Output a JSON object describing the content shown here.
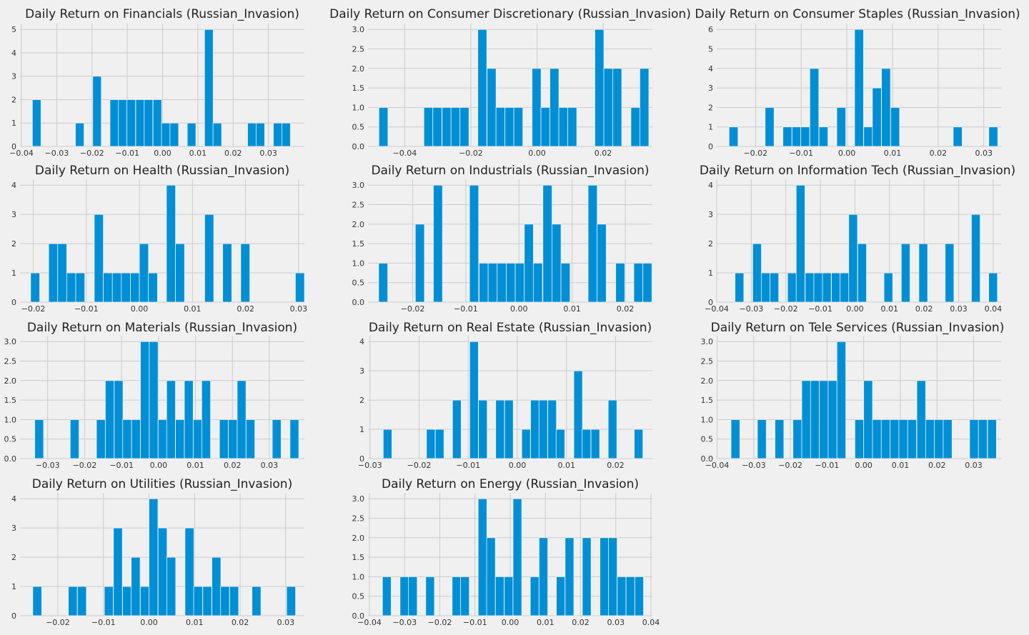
{
  "figure": {
    "background": "#f0f0f0",
    "bar_color": "#008fd5",
    "grid": true
  },
  "chart_data": [
    {
      "type": "bar",
      "title": "Daily Return on Financials (Russian_Invasion)",
      "xlabel": "",
      "ylabel": "",
      "bin_width": 0.00244,
      "bins": [
        [
          -0.0369,
          2
        ],
        [
          -0.0247,
          1
        ],
        [
          -0.0198,
          3
        ],
        [
          -0.0149,
          2
        ],
        [
          -0.0125,
          2
        ],
        [
          -0.0101,
          2
        ],
        [
          -0.0076,
          2
        ],
        [
          -0.0052,
          2
        ],
        [
          -0.0027,
          2
        ],
        [
          -0.0003,
          1
        ],
        [
          0.0021,
          1
        ],
        [
          0.007,
          1
        ],
        [
          0.0119,
          5
        ],
        [
          0.0143,
          1
        ],
        [
          0.0241,
          1
        ],
        [
          0.0265,
          1
        ],
        [
          0.0314,
          1
        ],
        [
          0.0338,
          1
        ]
      ],
      "xlim": [
        -0.0404,
        0.0402
      ],
      "ylim": [
        0,
        5.25
      ],
      "xticks": [
        -0.04,
        -0.03,
        -0.02,
        -0.01,
        0.0,
        0.01,
        0.02,
        0.03
      ],
      "xtick_labels": [
        "−0.04",
        "−0.03",
        "−0.02",
        "−0.01",
        "0.00",
        "0.01",
        "0.02",
        "0.03"
      ],
      "yticks": [
        0,
        1,
        2,
        3,
        4,
        5
      ],
      "ytick_labels": [
        "0",
        "1",
        "2",
        "3",
        "4",
        "5"
      ]
    },
    {
      "type": "bar",
      "title": "Daily Return on Consumer Discretionary (Russian_Invasion)",
      "xlabel": "",
      "ylabel": "",
      "bin_width": 0.00272,
      "bins": [
        [
          -0.0478,
          1
        ],
        [
          -0.0342,
          1
        ],
        [
          -0.0315,
          1
        ],
        [
          -0.0287,
          1
        ],
        [
          -0.026,
          1
        ],
        [
          -0.0233,
          1
        ],
        [
          -0.0179,
          3
        ],
        [
          -0.0151,
          2
        ],
        [
          -0.0124,
          1
        ],
        [
          -0.0097,
          1
        ],
        [
          -0.007,
          1
        ],
        [
          -0.0015,
          2
        ],
        [
          0.0012,
          1
        ],
        [
          0.0039,
          2
        ],
        [
          0.0066,
          1
        ],
        [
          0.0093,
          1
        ],
        [
          0.0175,
          3
        ],
        [
          0.0202,
          2
        ],
        [
          0.0229,
          2
        ],
        [
          0.0284,
          1
        ],
        [
          0.0311,
          2
        ]
      ],
      "xlim": [
        -0.0511,
        0.0349
      ],
      "ylim": [
        0,
        3.15
      ],
      "xticks": [
        -0.04,
        -0.02,
        0.0,
        0.02
      ],
      "xtick_labels": [
        "−0.04",
        "−0.02",
        "0.00",
        "0.02"
      ],
      "yticks": [
        0,
        0.5,
        1,
        1.5,
        2,
        2.5,
        3
      ],
      "ytick_labels": [
        "0.0",
        "0.5",
        "1.0",
        "1.5",
        "2.0",
        "2.5",
        "3.0"
      ]
    },
    {
      "type": "bar",
      "title": "Daily Return on Consumer Staples (Russian_Invasion)",
      "xlabel": "",
      "ylabel": "",
      "bin_width": 0.00196,
      "bins": [
        [
          -0.0258,
          1
        ],
        [
          -0.0179,
          2
        ],
        [
          -0.014,
          1
        ],
        [
          -0.012,
          1
        ],
        [
          -0.0101,
          1
        ],
        [
          -0.0081,
          4
        ],
        [
          -0.0061,
          1
        ],
        [
          -0.0022,
          2
        ],
        [
          0.0017,
          6
        ],
        [
          0.0037,
          1
        ],
        [
          0.0056,
          3
        ],
        [
          0.0076,
          4
        ],
        [
          0.0096,
          2
        ],
        [
          0.0233,
          1
        ],
        [
          0.0311,
          1
        ]
      ],
      "xlim": [
        -0.0285,
        0.0338
      ],
      "ylim": [
        0,
        6.3
      ],
      "xticks": [
        -0.02,
        -0.01,
        0.0,
        0.01,
        0.02,
        0.03
      ],
      "xtick_labels": [
        "−0.02",
        "−0.01",
        "0.00",
        "0.01",
        "0.02",
        "0.03"
      ],
      "yticks": [
        0,
        1,
        2,
        3,
        4,
        5,
        6
      ],
      "ytick_labels": [
        "0",
        "1",
        "2",
        "3",
        "4",
        "5",
        "6"
      ]
    },
    {
      "type": "bar",
      "title": "Daily Return on Health (Russian_Invasion)",
      "xlabel": "",
      "ylabel": "",
      "bin_width": 0.00171,
      "bins": [
        [
          -0.0205,
          1
        ],
        [
          -0.0171,
          2
        ],
        [
          -0.0154,
          2
        ],
        [
          -0.0137,
          1
        ],
        [
          -0.012,
          1
        ],
        [
          -0.0085,
          3
        ],
        [
          -0.0068,
          1
        ],
        [
          -0.0051,
          1
        ],
        [
          -0.0034,
          1
        ],
        [
          -0.0017,
          1
        ],
        [
          0.0,
          2
        ],
        [
          0.0017,
          1
        ],
        [
          0.0051,
          4
        ],
        [
          0.0068,
          2
        ],
        [
          0.0123,
          3
        ],
        [
          0.0157,
          2
        ],
        [
          0.0191,
          2
        ],
        [
          0.0294,
          1
        ]
      ],
      "xlim": [
        -0.0225,
        0.0311
      ],
      "ylim": [
        0,
        4.2
      ],
      "xticks": [
        -0.02,
        -0.01,
        0.0,
        0.01,
        0.02,
        0.03
      ],
      "xtick_labels": [
        "−0.02",
        "−0.01",
        "0.00",
        "0.01",
        "0.02",
        "0.03"
      ],
      "yticks": [
        0,
        1,
        2,
        3,
        4
      ],
      "ytick_labels": [
        "0",
        "1",
        "2",
        "3",
        "4"
      ]
    },
    {
      "type": "bar",
      "title": "Daily Return on Industrials (Russian_Invasion)",
      "xlabel": "",
      "ylabel": "",
      "bin_width": 0.00171,
      "bins": [
        [
          -0.0264,
          1
        ],
        [
          -0.0195,
          2
        ],
        [
          -0.0161,
          3
        ],
        [
          -0.0093,
          3
        ],
        [
          -0.0075,
          1
        ],
        [
          -0.0058,
          1
        ],
        [
          -0.0041,
          1
        ],
        [
          -0.0024,
          1
        ],
        [
          -0.0007,
          1
        ],
        [
          0.001,
          2
        ],
        [
          0.0027,
          1
        ],
        [
          0.0045,
          3
        ],
        [
          0.0062,
          2
        ],
        [
          0.0079,
          1
        ],
        [
          0.013,
          3
        ],
        [
          0.0147,
          2
        ],
        [
          0.0182,
          1
        ],
        [
          0.0216,
          1
        ],
        [
          0.0233,
          1
        ]
      ],
      "xlim": [
        -0.0284,
        0.0251
      ],
      "ylim": [
        0,
        3.15
      ],
      "xticks": [
        -0.02,
        -0.01,
        0.0,
        0.01,
        0.02
      ],
      "xtick_labels": [
        "−0.02",
        "−0.01",
        "0.00",
        "0.01",
        "0.02"
      ],
      "yticks": [
        0,
        0.5,
        1,
        1.5,
        2,
        2.5,
        3
      ],
      "ytick_labels": [
        "0.0",
        "0.5",
        "1.0",
        "1.5",
        "2.0",
        "2.5",
        "3.0"
      ]
    },
    {
      "type": "bar",
      "title": "Daily Return on Information Tech (Russian_Invasion)",
      "xlabel": "",
      "ylabel": "",
      "bin_width": 0.00253,
      "bins": [
        [
          -0.0347,
          1
        ],
        [
          -0.0296,
          2
        ],
        [
          -0.0271,
          1
        ],
        [
          -0.0246,
          1
        ],
        [
          -0.0195,
          1
        ],
        [
          -0.017,
          4
        ],
        [
          -0.0144,
          1
        ],
        [
          -0.0119,
          1
        ],
        [
          -0.0094,
          1
        ],
        [
          -0.0068,
          1
        ],
        [
          -0.0043,
          1
        ],
        [
          -0.0018,
          3
        ],
        [
          0.0008,
          2
        ],
        [
          0.0084,
          1
        ],
        [
          0.0134,
          2
        ],
        [
          0.0185,
          2
        ],
        [
          0.0261,
          2
        ],
        [
          0.0337,
          3
        ],
        [
          0.0387,
          1
        ]
      ],
      "xlim": [
        -0.04,
        0.0423
      ],
      "ylim": [
        0,
        4.2
      ],
      "xticks": [
        -0.04,
        -0.03,
        -0.02,
        -0.01,
        0.0,
        0.01,
        0.02,
        0.03,
        0.04
      ],
      "xtick_labels": [
        "−0.04",
        "−0.03",
        "−0.02",
        "−0.01",
        "0.00",
        "0.01",
        "0.02",
        "0.03",
        "0.04"
      ],
      "yticks": [
        0,
        1,
        2,
        3,
        4
      ],
      "ytick_labels": [
        "0",
        "1",
        "2",
        "3",
        "4"
      ]
    },
    {
      "type": "bar",
      "title": "Daily Return on Materials (Russian_Invasion)",
      "xlabel": "",
      "ylabel": "",
      "bin_width": 0.00238,
      "bins": [
        [
          -0.0335,
          1
        ],
        [
          -0.0239,
          1
        ],
        [
          -0.0168,
          1
        ],
        [
          -0.0144,
          2
        ],
        [
          -0.012,
          2
        ],
        [
          -0.0097,
          1
        ],
        [
          -0.0073,
          1
        ],
        [
          -0.0049,
          3
        ],
        [
          -0.0025,
          3
        ],
        [
          -0.0001,
          1
        ],
        [
          0.0022,
          2
        ],
        [
          0.0046,
          1
        ],
        [
          0.007,
          2
        ],
        [
          0.0094,
          1
        ],
        [
          0.0117,
          2
        ],
        [
          0.0165,
          1
        ],
        [
          0.0189,
          1
        ],
        [
          0.0213,
          2
        ],
        [
          0.0237,
          1
        ],
        [
          0.0308,
          1
        ],
        [
          0.0356,
          1
        ]
      ],
      "xlim": [
        -0.0375,
        0.0395
      ],
      "ylim": [
        0,
        3.15
      ],
      "xticks": [
        -0.03,
        -0.02,
        -0.01,
        0.0,
        0.01,
        0.02,
        0.03
      ],
      "xtick_labels": [
        "−0.03",
        "−0.02",
        "−0.01",
        "0.00",
        "0.01",
        "0.02",
        "0.03"
      ],
      "yticks": [
        0,
        0.5,
        1,
        1.5,
        2,
        2.5,
        3
      ],
      "ytick_labels": [
        "0.0",
        "0.5",
        "1.0",
        "1.5",
        "2.0",
        "2.5",
        "3.0"
      ]
    },
    {
      "type": "bar",
      "title": "Daily Return on Real Estate (Russian_Invasion)",
      "xlabel": "",
      "ylabel": "",
      "bin_width": 0.00176,
      "bins": [
        [
          -0.0273,
          1
        ],
        [
          -0.0185,
          1
        ],
        [
          -0.0167,
          1
        ],
        [
          -0.0132,
          2
        ],
        [
          -0.0097,
          4
        ],
        [
          -0.0079,
          2
        ],
        [
          -0.0044,
          2
        ],
        [
          -0.0026,
          2
        ],
        [
          0.0009,
          1
        ],
        [
          0.0027,
          2
        ],
        [
          0.0044,
          2
        ],
        [
          0.0062,
          2
        ],
        [
          0.0079,
          1
        ],
        [
          0.0115,
          3
        ],
        [
          0.0132,
          1
        ],
        [
          0.015,
          1
        ],
        [
          0.0185,
          2
        ],
        [
          0.0238,
          1
        ]
      ],
      "xlim": [
        -0.0304,
        0.0275
      ],
      "ylim": [
        0,
        4.2
      ],
      "xticks": [
        -0.03,
        -0.02,
        -0.01,
        0.0,
        0.01,
        0.02
      ],
      "xtick_labels": [
        "−0.03",
        "−0.02",
        "−0.01",
        "0.00",
        "0.01",
        "0.02"
      ],
      "yticks": [
        0,
        1,
        2,
        3,
        4
      ],
      "ytick_labels": [
        "0",
        "1",
        "2",
        "3",
        "4"
      ]
    },
    {
      "type": "bar",
      "title": "Daily Return on Tele Services (Russian_Invasion)",
      "xlabel": "",
      "ylabel": "",
      "bin_width": 0.00241,
      "bins": [
        [
          -0.0362,
          1
        ],
        [
          -0.029,
          1
        ],
        [
          -0.0242,
          1
        ],
        [
          -0.0193,
          1
        ],
        [
          -0.0169,
          2
        ],
        [
          -0.0145,
          2
        ],
        [
          -0.0121,
          2
        ],
        [
          -0.0097,
          2
        ],
        [
          -0.0073,
          3
        ],
        [
          -0.0024,
          1
        ],
        [
          0.0,
          2
        ],
        [
          0.0024,
          1
        ],
        [
          0.0048,
          1
        ],
        [
          0.0072,
          1
        ],
        [
          0.0096,
          1
        ],
        [
          0.012,
          1
        ],
        [
          0.0145,
          2
        ],
        [
          0.0169,
          1
        ],
        [
          0.0193,
          1
        ],
        [
          0.0217,
          1
        ],
        [
          0.0289,
          1
        ],
        [
          0.0313,
          1
        ],
        [
          0.0338,
          1
        ]
      ],
      "xlim": [
        -0.0401,
        0.0375
      ],
      "ylim": [
        0,
        3.15
      ],
      "xticks": [
        -0.04,
        -0.03,
        -0.02,
        -0.01,
        0.0,
        0.01,
        0.02,
        0.03
      ],
      "xtick_labels": [
        "−0.04",
        "−0.03",
        "−0.02",
        "−0.01",
        "0.00",
        "0.01",
        "0.02",
        "0.03"
      ],
      "yticks": [
        0,
        0.5,
        1,
        1.5,
        2,
        2.5,
        3
      ],
      "ytick_labels": [
        "0.0",
        "0.5",
        "1.0",
        "1.5",
        "2.0",
        "2.5",
        "3.0"
      ]
    },
    {
      "type": "bar",
      "title": "Daily Return on Utilities (Russian_Invasion)",
      "xlabel": "",
      "ylabel": "",
      "bin_width": 0.00196,
      "bins": [
        [
          -0.0255,
          1
        ],
        [
          -0.0177,
          1
        ],
        [
          -0.0157,
          1
        ],
        [
          -0.0098,
          1
        ],
        [
          -0.0078,
          3
        ],
        [
          -0.0058,
          1
        ],
        [
          -0.0039,
          2
        ],
        [
          -0.0019,
          1
        ],
        [
          0.0,
          4
        ],
        [
          0.002,
          3
        ],
        [
          0.0039,
          2
        ],
        [
          0.0079,
          3
        ],
        [
          0.0098,
          1
        ],
        [
          0.0118,
          1
        ],
        [
          0.0138,
          2
        ],
        [
          0.0157,
          1
        ],
        [
          0.0177,
          1
        ],
        [
          0.0226,
          1
        ],
        [
          0.0302,
          1
        ]
      ],
      "xlim": [
        -0.0283,
        0.0341
      ],
      "ylim": [
        0,
        4.2
      ],
      "xticks": [
        -0.02,
        -0.01,
        0.0,
        0.01,
        0.02,
        0.03
      ],
      "xtick_labels": [
        "−0.02",
        "−0.01",
        "0.00",
        "0.01",
        "0.02",
        "0.03"
      ],
      "yticks": [
        0,
        1,
        2,
        3,
        4
      ],
      "ytick_labels": [
        "0",
        "1",
        "2",
        "3",
        "4"
      ]
    },
    {
      "type": "bar",
      "title": "Daily Return on Energy (Russian_Invasion)",
      "xlabel": "",
      "ylabel": "",
      "bin_width": 0.00247,
      "bins": [
        [
          -0.0363,
          1
        ],
        [
          -0.0313,
          1
        ],
        [
          -0.0289,
          1
        ],
        [
          -0.024,
          1
        ],
        [
          -0.0165,
          1
        ],
        [
          -0.0141,
          1
        ],
        [
          -0.0091,
          3
        ],
        [
          -0.0067,
          2
        ],
        [
          -0.0042,
          1
        ],
        [
          -0.0017,
          1
        ],
        [
          0.0008,
          3
        ],
        [
          0.0057,
          1
        ],
        [
          0.0082,
          2
        ],
        [
          0.0131,
          1
        ],
        [
          0.0156,
          2
        ],
        [
          0.0205,
          2
        ],
        [
          0.0255,
          2
        ],
        [
          0.0279,
          2
        ],
        [
          0.0304,
          1
        ],
        [
          0.0329,
          1
        ],
        [
          0.0354,
          1
        ]
      ],
      "xlim": [
        -0.0404,
        0.0404
      ],
      "ylim": [
        0,
        3.15
      ],
      "xticks": [
        -0.04,
        -0.03,
        -0.02,
        -0.01,
        0.0,
        0.01,
        0.02,
        0.03,
        0.04
      ],
      "xtick_labels": [
        "−0.04",
        "−0.03",
        "−0.02",
        "−0.01",
        "0.00",
        "0.01",
        "0.02",
        "0.03",
        "0.04"
      ],
      "yticks": [
        0,
        0.5,
        1,
        1.5,
        2,
        2.5,
        3
      ],
      "ytick_labels": [
        "0.0",
        "0.5",
        "1.0",
        "1.5",
        "2.0",
        "2.5",
        "3.0"
      ]
    }
  ]
}
